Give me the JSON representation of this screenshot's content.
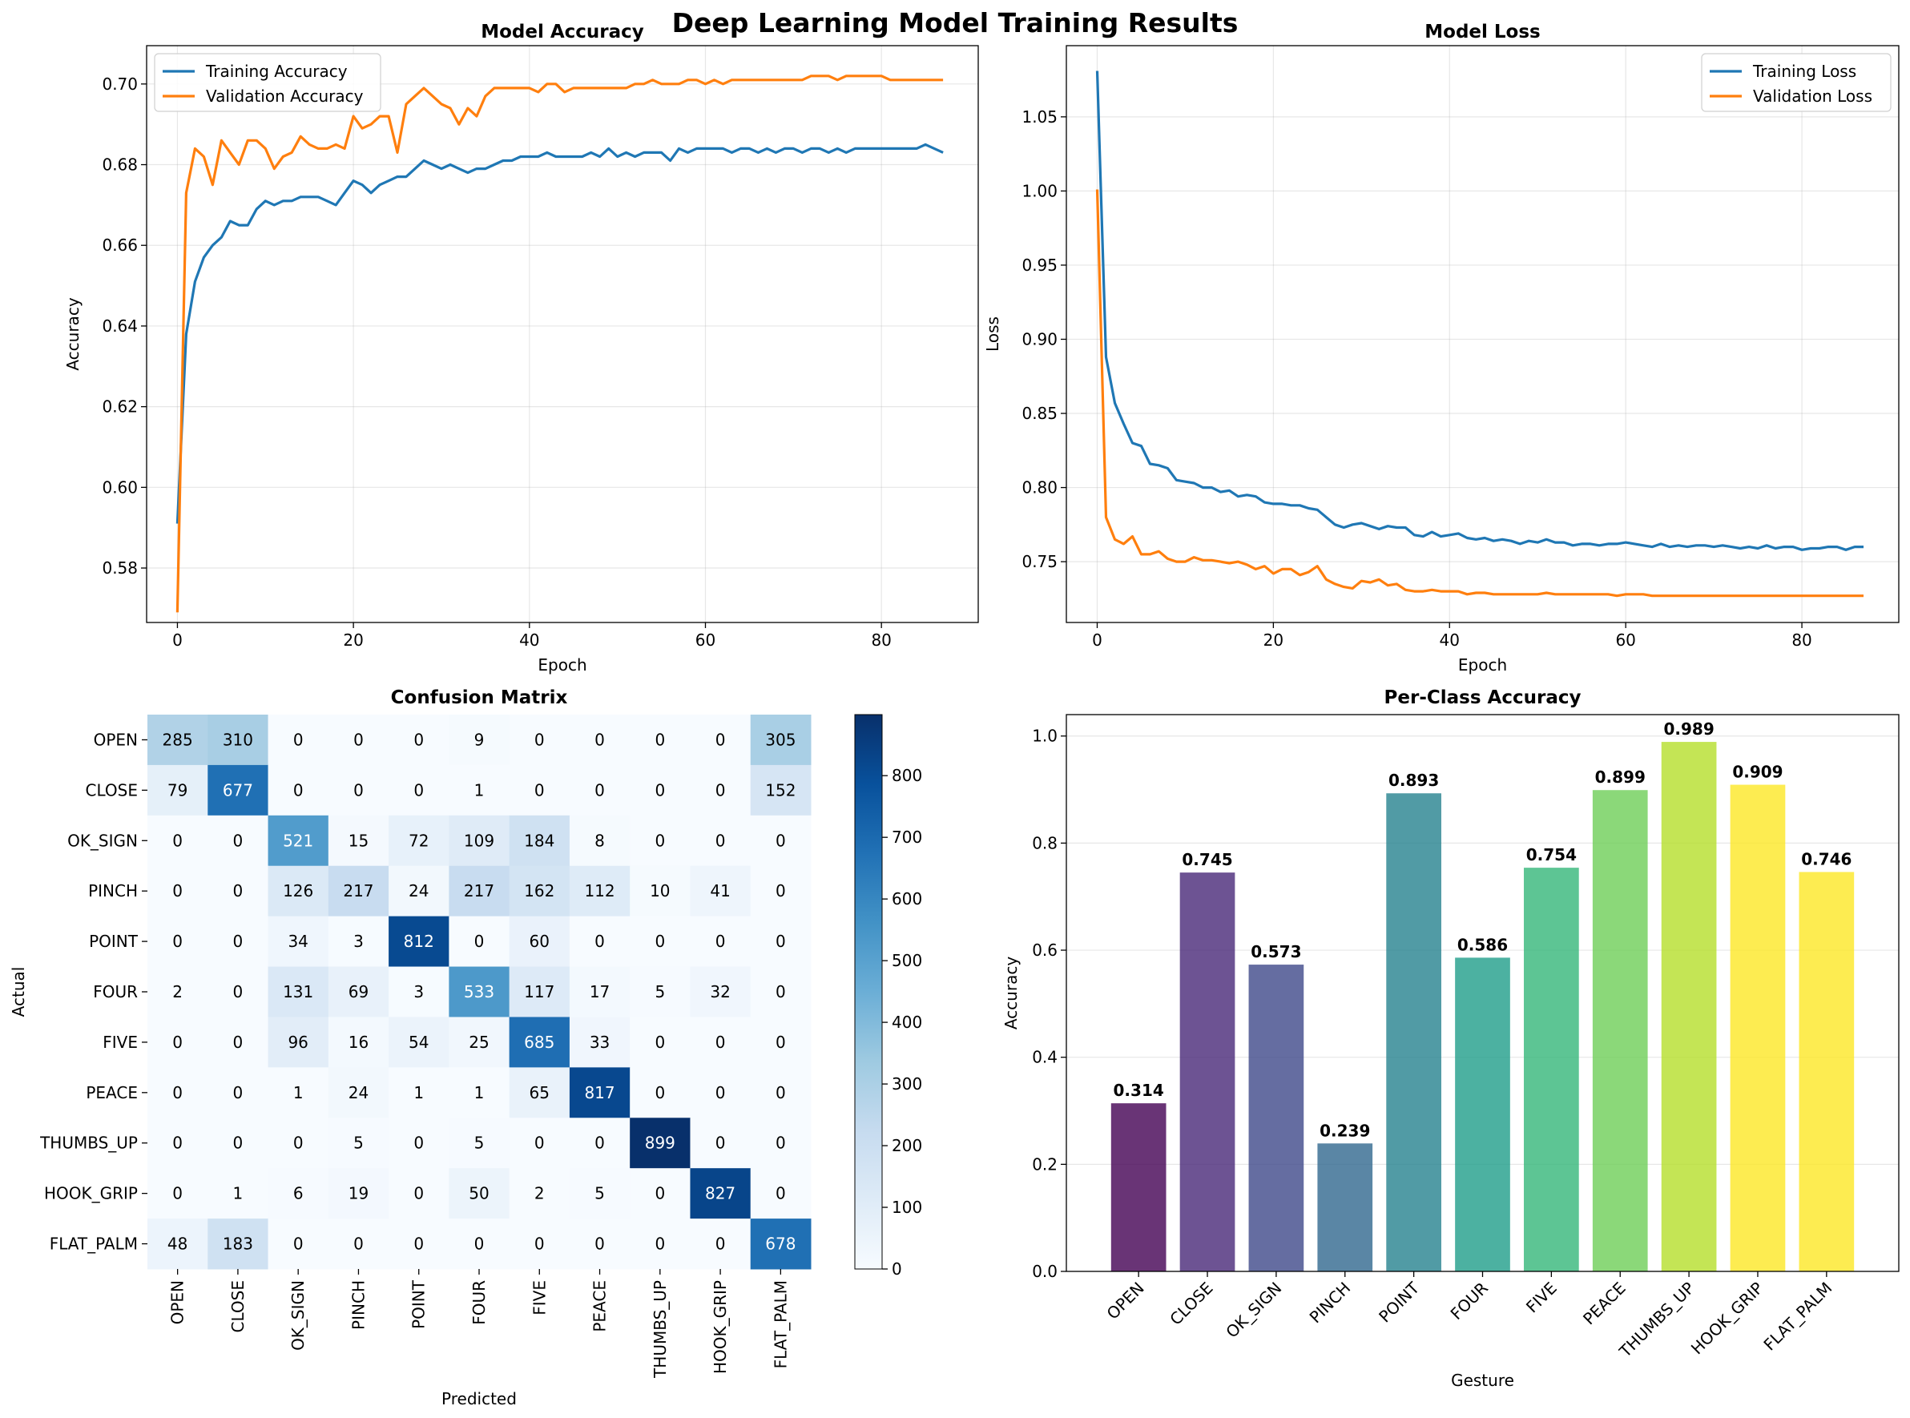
{
  "suptitle": "Deep Learning Model Training Results",
  "chart_data": [
    {
      "type": "line",
      "title": "Model Accuracy",
      "xlabel": "Epoch",
      "ylabel": "Accuracy",
      "xlim": [
        -3.5,
        91
      ],
      "ylim": [
        0.5665,
        0.7095
      ],
      "xticks": [
        0,
        20,
        40,
        60,
        80
      ],
      "yticks": [
        0.58,
        0.6,
        0.62,
        0.64,
        0.66,
        0.68,
        0.7
      ],
      "grid": true,
      "legend": "upper-left",
      "x_range": [
        0,
        87
      ],
      "series": [
        {
          "name": "Training Accuracy",
          "color": "#1f77b4",
          "values": [
            0.591,
            0.638,
            0.651,
            0.657,
            0.66,
            0.662,
            0.666,
            0.665,
            0.665,
            0.669,
            0.671,
            0.67,
            0.671,
            0.671,
            0.672,
            0.672,
            0.672,
            0.671,
            0.67,
            0.673,
            0.676,
            0.675,
            0.673,
            0.675,
            0.676,
            0.677,
            0.677,
            0.679,
            0.681,
            0.68,
            0.679,
            0.68,
            0.679,
            0.678,
            0.679,
            0.679,
            0.68,
            0.681,
            0.681,
            0.682,
            0.682,
            0.682,
            0.683,
            0.682,
            0.682,
            0.682,
            0.682,
            0.683,
            0.682,
            0.684,
            0.682,
            0.683,
            0.682,
            0.683,
            0.683,
            0.683,
            0.681,
            0.684,
            0.683,
            0.684,
            0.684,
            0.684,
            0.684,
            0.683,
            0.684,
            0.684,
            0.683,
            0.684,
            0.683,
            0.684,
            0.684,
            0.683,
            0.684,
            0.684,
            0.683,
            0.684,
            0.683,
            0.684,
            0.684,
            0.684,
            0.684,
            0.684,
            0.684,
            0.684,
            0.684,
            0.685,
            0.684,
            0.683
          ]
        },
        {
          "name": "Validation Accuracy",
          "color": "#ff7f0e",
          "values": [
            0.569,
            0.673,
            0.684,
            0.682,
            0.675,
            0.686,
            0.683,
            0.68,
            0.686,
            0.686,
            0.684,
            0.679,
            0.682,
            0.683,
            0.687,
            0.685,
            0.684,
            0.684,
            0.685,
            0.684,
            0.692,
            0.689,
            0.69,
            0.692,
            0.692,
            0.683,
            0.695,
            0.697,
            0.699,
            0.697,
            0.695,
            0.694,
            0.69,
            0.694,
            0.692,
            0.697,
            0.699,
            0.699,
            0.699,
            0.699,
            0.699,
            0.698,
            0.7,
            0.7,
            0.698,
            0.699,
            0.699,
            0.699,
            0.699,
            0.699,
            0.699,
            0.699,
            0.7,
            0.7,
            0.701,
            0.7,
            0.7,
            0.7,
            0.701,
            0.701,
            0.7,
            0.701,
            0.7,
            0.701,
            0.701,
            0.701,
            0.701,
            0.701,
            0.701,
            0.701,
            0.701,
            0.701,
            0.702,
            0.702,
            0.702,
            0.701,
            0.702,
            0.702,
            0.702,
            0.702,
            0.702,
            0.701,
            0.701,
            0.701,
            0.701,
            0.701,
            0.701,
            0.701
          ]
        }
      ]
    },
    {
      "type": "line",
      "title": "Model Loss",
      "xlabel": "Epoch",
      "ylabel": "Loss",
      "xlim": [
        -3.5,
        91
      ],
      "ylim": [
        0.709,
        1.098
      ],
      "xticks": [
        0,
        20,
        40,
        60,
        80
      ],
      "yticks": [
        0.75,
        0.8,
        0.85,
        0.9,
        0.95,
        1.0,
        1.05
      ],
      "grid": true,
      "legend": "upper-right",
      "x_range": [
        0,
        87
      ],
      "series": [
        {
          "name": "Training Loss",
          "color": "#1f77b4",
          "values": [
            1.081,
            0.888,
            0.857,
            0.843,
            0.83,
            0.828,
            0.816,
            0.815,
            0.813,
            0.805,
            0.804,
            0.803,
            0.8,
            0.8,
            0.797,
            0.798,
            0.794,
            0.795,
            0.794,
            0.79,
            0.789,
            0.789,
            0.788,
            0.788,
            0.786,
            0.785,
            0.78,
            0.775,
            0.773,
            0.775,
            0.776,
            0.774,
            0.772,
            0.774,
            0.773,
            0.773,
            0.768,
            0.767,
            0.77,
            0.767,
            0.768,
            0.769,
            0.766,
            0.765,
            0.766,
            0.764,
            0.765,
            0.764,
            0.762,
            0.764,
            0.763,
            0.765,
            0.763,
            0.763,
            0.761,
            0.762,
            0.762,
            0.761,
            0.762,
            0.762,
            0.763,
            0.762,
            0.761,
            0.76,
            0.762,
            0.76,
            0.761,
            0.76,
            0.761,
            0.761,
            0.76,
            0.761,
            0.76,
            0.759,
            0.76,
            0.759,
            0.761,
            0.759,
            0.76,
            0.76,
            0.758,
            0.759,
            0.759,
            0.76,
            0.76,
            0.758,
            0.76,
            0.76
          ]
        },
        {
          "name": "Validation Loss",
          "color": "#ff7f0e",
          "values": [
            1.001,
            0.78,
            0.765,
            0.762,
            0.767,
            0.755,
            0.755,
            0.757,
            0.752,
            0.75,
            0.75,
            0.753,
            0.751,
            0.751,
            0.75,
            0.749,
            0.75,
            0.748,
            0.745,
            0.747,
            0.742,
            0.745,
            0.745,
            0.741,
            0.743,
            0.747,
            0.738,
            0.735,
            0.733,
            0.732,
            0.737,
            0.736,
            0.738,
            0.734,
            0.735,
            0.731,
            0.73,
            0.73,
            0.731,
            0.73,
            0.73,
            0.73,
            0.728,
            0.729,
            0.729,
            0.728,
            0.728,
            0.728,
            0.728,
            0.728,
            0.728,
            0.729,
            0.728,
            0.728,
            0.728,
            0.728,
            0.728,
            0.728,
            0.728,
            0.727,
            0.728,
            0.728,
            0.728,
            0.727,
            0.727,
            0.727,
            0.727,
            0.727,
            0.727,
            0.727,
            0.727,
            0.727,
            0.727,
            0.727,
            0.727,
            0.727,
            0.727,
            0.727,
            0.727,
            0.727,
            0.727,
            0.727,
            0.727,
            0.727,
            0.727,
            0.727,
            0.727,
            0.727
          ]
        }
      ]
    },
    {
      "type": "heatmap",
      "title": "Confusion Matrix",
      "xlabel": "Predicted",
      "ylabel": "Actual",
      "colormap": "Blues",
      "vmin": 0,
      "vmax": 899,
      "colorbar_ticks": [
        0,
        100,
        200,
        300,
        400,
        500,
        600,
        700,
        800
      ],
      "labels": [
        "OPEN",
        "CLOSE",
        "OK_SIGN",
        "PINCH",
        "POINT",
        "FOUR",
        "FIVE",
        "PEACE",
        "THUMBS_UP",
        "HOOK_GRIP",
        "FLAT_PALM"
      ],
      "matrix": [
        [
          285,
          310,
          0,
          0,
          0,
          9,
          0,
          0,
          0,
          0,
          305
        ],
        [
          79,
          677,
          0,
          0,
          0,
          1,
          0,
          0,
          0,
          0,
          152
        ],
        [
          0,
          0,
          521,
          15,
          72,
          109,
          184,
          8,
          0,
          0,
          0
        ],
        [
          0,
          0,
          126,
          217,
          24,
          217,
          162,
          112,
          10,
          41,
          0
        ],
        [
          0,
          0,
          34,
          3,
          812,
          0,
          60,
          0,
          0,
          0,
          0
        ],
        [
          2,
          0,
          131,
          69,
          3,
          533,
          117,
          17,
          5,
          32,
          0
        ],
        [
          0,
          0,
          96,
          16,
          54,
          25,
          685,
          33,
          0,
          0,
          0
        ],
        [
          0,
          0,
          1,
          24,
          1,
          1,
          65,
          817,
          0,
          0,
          0
        ],
        [
          0,
          0,
          0,
          5,
          0,
          5,
          0,
          0,
          899,
          0,
          0
        ],
        [
          0,
          1,
          6,
          19,
          0,
          50,
          2,
          5,
          0,
          827,
          0
        ],
        [
          48,
          183,
          0,
          0,
          0,
          0,
          0,
          0,
          0,
          0,
          678
        ]
      ]
    },
    {
      "type": "bar",
      "title": "Per-Class Accuracy",
      "xlabel": "Gesture",
      "ylabel": "Accuracy",
      "ylim": [
        0,
        1.04
      ],
      "yticks": [
        0.0,
        0.2,
        0.4,
        0.6,
        0.8,
        1.0
      ],
      "yticklabels": [
        "0.0",
        "0.2",
        "0.4",
        "0.6",
        "0.8",
        "1.0"
      ],
      "grid": true,
      "colormap": "viridis",
      "categories": [
        "OPEN",
        "CLOSE",
        "OK_SIGN",
        "PINCH",
        "POINT",
        "FOUR",
        "FIVE",
        "PEACE",
        "THUMBS_UP",
        "HOOK_GRIP",
        "FLAT_PALM"
      ],
      "values": [
        0.314,
        0.745,
        0.573,
        0.239,
        0.893,
        0.586,
        0.754,
        0.899,
        0.989,
        0.909,
        0.746
      ],
      "value_labels": [
        "0.314",
        "0.745",
        "0.573",
        "0.239",
        "0.893",
        "0.586",
        "0.754",
        "0.899",
        "0.989",
        "0.909",
        "0.746"
      ],
      "colors": [
        "#440154",
        "#482878",
        "#3e4989",
        "#31688e",
        "#26828e",
        "#1f9e89",
        "#35b779",
        "#6ece58",
        "#b5de2b",
        "#fde725",
        "#fde725"
      ]
    }
  ]
}
